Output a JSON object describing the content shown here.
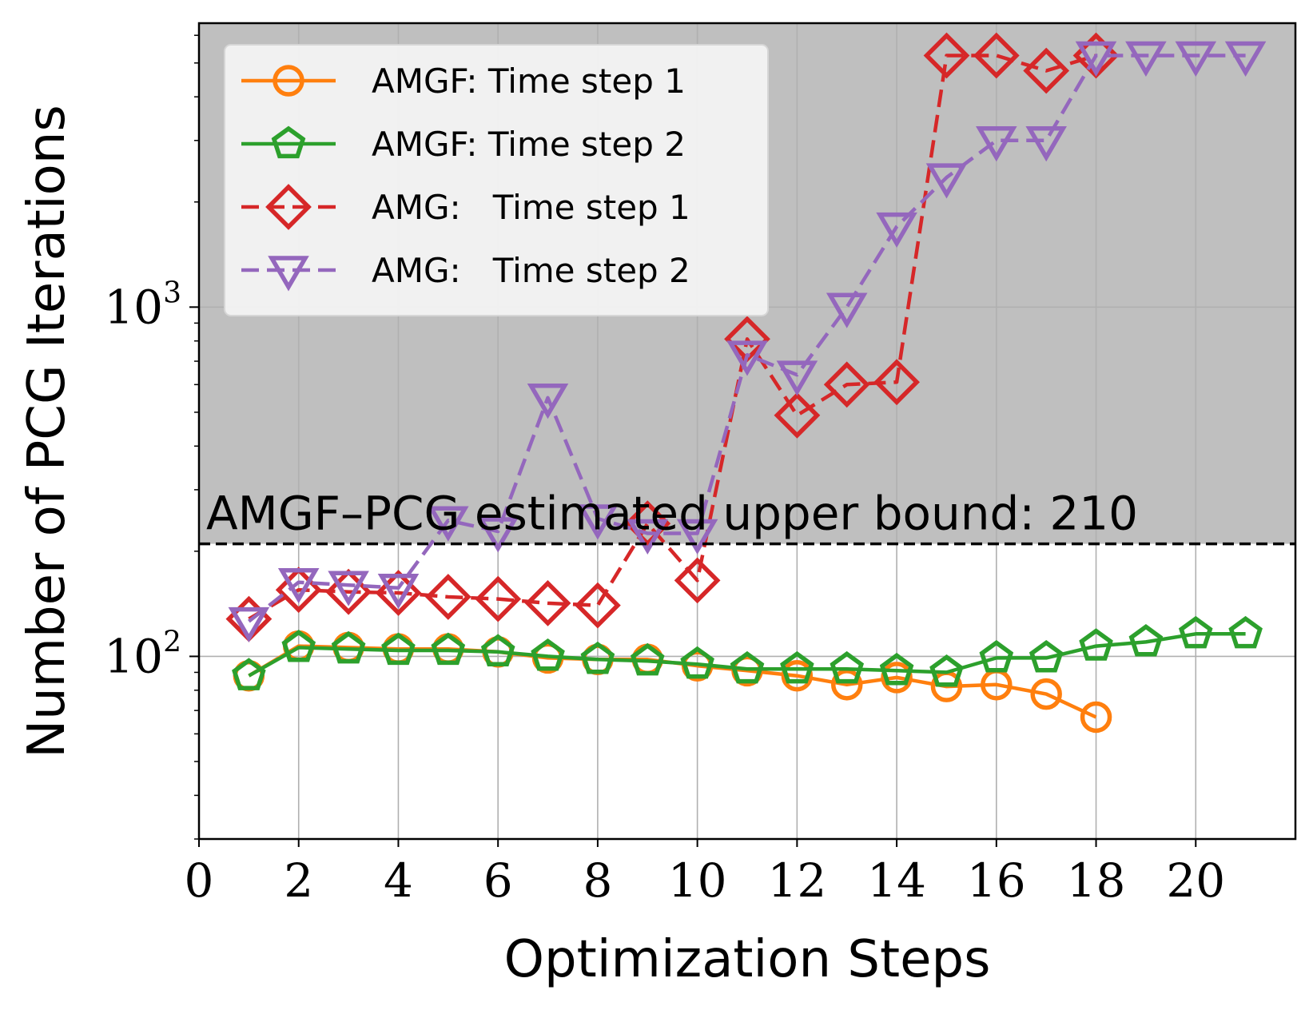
{
  "chart_data": {
    "type": "line",
    "xlabel": "Optimization Steps",
    "ylabel": "Number of PCG Iterations",
    "yscale": "log",
    "xlim": [
      0,
      22
    ],
    "ylim": [
      30,
      6500
    ],
    "x_ticks": [
      "0",
      "2",
      "4",
      "6",
      "8",
      "10",
      "12",
      "14",
      "16",
      "18",
      "20"
    ],
    "y_ticks": [
      {
        "base": "10",
        "exp": "2",
        "value": 100
      },
      {
        "base": "10",
        "exp": "3",
        "value": 1000
      }
    ],
    "grid": true,
    "legend_position": "upper-left",
    "threshold": {
      "value": 210,
      "label": "AMGF–PCG estimated upper bound: 210",
      "shade_above": "#bfbfbf"
    },
    "series": [
      {
        "name": "AMGF: Time step 1",
        "color": "#ff7f0e",
        "marker": "circle",
        "dash": "solid",
        "x": [
          1,
          2,
          3,
          4,
          5,
          6,
          7,
          8,
          9,
          10,
          11,
          12,
          13,
          14,
          15,
          16,
          17,
          18
        ],
        "values": [
          88,
          107,
          106,
          105,
          105,
          103,
          99,
          98,
          98,
          94,
          91,
          88,
          83,
          87,
          82,
          83,
          78,
          67
        ]
      },
      {
        "name": "AMGF: Time step 2",
        "color": "#2ca02c",
        "marker": "pentagon",
        "dash": "solid",
        "x": [
          1,
          2,
          3,
          4,
          5,
          6,
          7,
          8,
          9,
          10,
          11,
          12,
          13,
          14,
          15,
          16,
          17,
          18,
          19,
          20,
          21
        ],
        "values": [
          88,
          106,
          105,
          104,
          104,
          103,
          100,
          98,
          97,
          95,
          92,
          92,
          92,
          91,
          90,
          99,
          99,
          107,
          110,
          116,
          116
        ]
      },
      {
        "name": "AMG:   Time step 1",
        "color": "#d62728",
        "marker": "diamond",
        "dash": "dashed",
        "x": [
          1,
          2,
          3,
          4,
          5,
          6,
          7,
          8,
          9,
          10,
          11,
          12,
          13,
          14,
          15,
          16,
          17,
          18
        ],
        "values": [
          128,
          155,
          153,
          152,
          148,
          146,
          142,
          140,
          240,
          165,
          810,
          490,
          600,
          610,
          5250,
          5250,
          4750,
          5250
        ]
      },
      {
        "name": "AMG:   Time step 2",
        "color": "#9467bd",
        "marker": "triangle-down",
        "dash": "dashed",
        "x": [
          1,
          2,
          3,
          4,
          5,
          6,
          7,
          8,
          9,
          10,
          11,
          12,
          13,
          14,
          15,
          16,
          17,
          18,
          19,
          20,
          21
        ],
        "values": [
          126,
          163,
          160,
          157,
          245,
          228,
          550,
          248,
          225,
          225,
          730,
          640,
          1000,
          1700,
          2350,
          3000,
          3000,
          5250,
          5250,
          5250,
          5250
        ]
      }
    ]
  }
}
